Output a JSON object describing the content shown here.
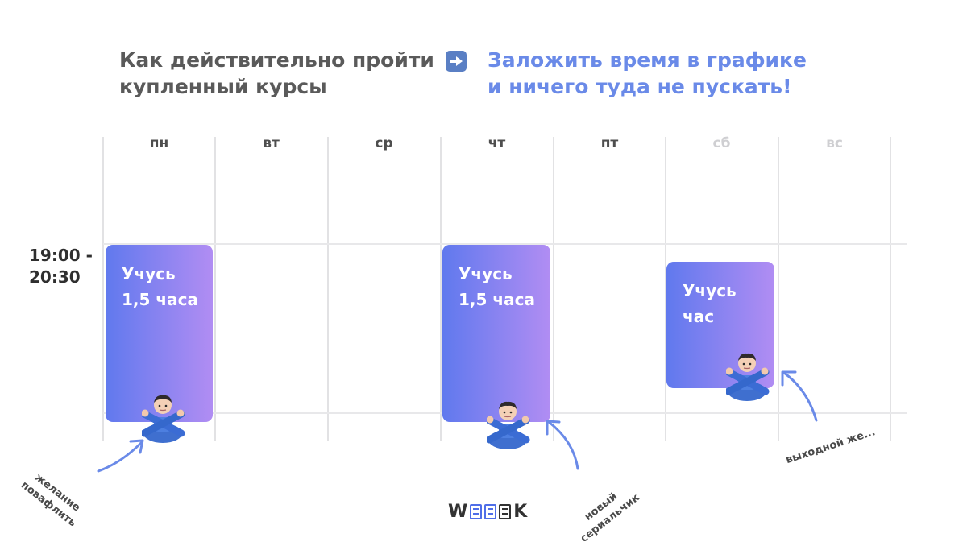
{
  "title": {
    "left_line1": "Как действительно пройти",
    "left_line2": "купленный курсы",
    "right_line1": "Заложить время в графике",
    "right_line2": "и ничего туда не пускать!"
  },
  "days": [
    "пн",
    "вт",
    "ср",
    "чт",
    "пт",
    "сб",
    "вс"
  ],
  "time_slot": {
    "line1": "19:00 -",
    "line2": "20:30"
  },
  "blocks": [
    {
      "line1": "Учусь",
      "line2": "1,5 часа"
    },
    {
      "line1": "Учусь",
      "line2": "1,5 часа"
    },
    {
      "line1": "Учусь",
      "line2": "час"
    }
  ],
  "notes": {
    "mon_line1": "желание",
    "mon_line2": "повафлить",
    "thu_line1": "новый",
    "thu_line2": "сериальчик",
    "sat": "выходной же..."
  },
  "logo": {
    "w": "W",
    "k": "K"
  },
  "colors": {
    "accent_title": "#6a8ae8",
    "block_gradient_start": "#6079ee",
    "block_gradient_end": "#b18df3",
    "arrow": "#6a8ae8",
    "weekend_label": "#cfcfd2"
  },
  "icons": [
    "arrow-right-icon",
    "person-crossing-arms-icon",
    "curved-arrow-icon",
    "weeek-logo"
  ]
}
